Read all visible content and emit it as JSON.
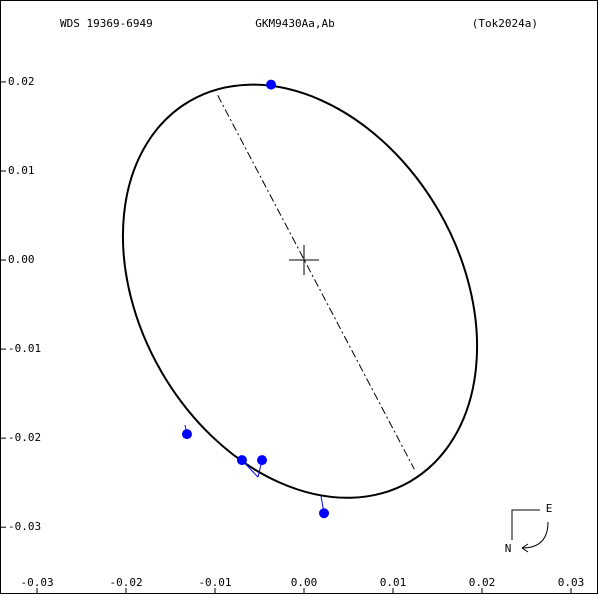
{
  "chart_data": {
    "type": "orbit",
    "title_left": "WDS 19369-6949",
    "title": "GKM9430Aa,Ab",
    "title_right": "(Tok2024a)",
    "xlim": [
      -0.03416,
      0.03326
    ],
    "ylim": [
      -0.0375,
      0.0292
    ],
    "xticks": [
      -0.03,
      -0.02,
      -0.01,
      {
        "value": 0,
        "label": "0.00"
      },
      0.01,
      0.02,
      0.03
    ],
    "yticks": [
      -0.03,
      -0.02,
      -0.01,
      {
        "value": 0,
        "label": "0.00"
      },
      0.01,
      0.02
    ],
    "ellipse": {
      "center": [
        -0.00045,
        -0.0035
      ],
      "semi_major": 0.0247,
      "semi_minor": 0.018,
      "angle": -60
    },
    "line_of_nodes": {
      "x": [
        -0.0097,
        0.0124
      ],
      "y": [
        0.0185,
        -0.0235
      ]
    },
    "color": "#0000ff",
    "x": [
      -0.0037,
      -0.01315,
      -0.00697,
      -0.00472,
      0.00225
    ],
    "y": [
      0.0197,
      -0.01955,
      -0.02247,
      -0.02247,
      -0.02843
    ],
    "orbit_x": [
      -0.0037,
      -0.01337,
      -0.00517,
      -0.00517,
      0.00191
    ],
    "orbit_y": [
      0.0195,
      -0.01854,
      -0.02438,
      -0.02438,
      -0.02652
    ],
    "compass": {
      "east": "E",
      "north": "N"
    }
  }
}
